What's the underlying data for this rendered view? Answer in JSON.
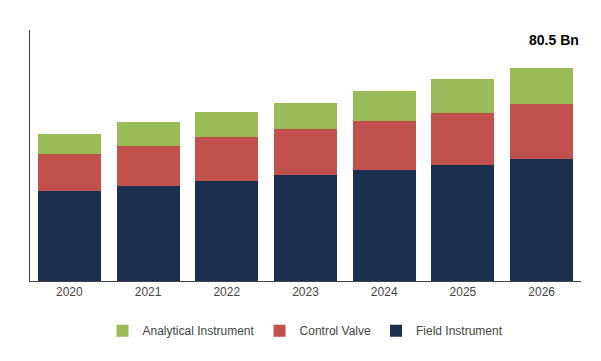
{
  "chart_data": {
    "type": "bar",
    "stacked": true,
    "categories": [
      "2020",
      "2021",
      "2022",
      "2023",
      "2024",
      "2025",
      "2026"
    ],
    "series": [
      {
        "name": "Field Instrument",
        "color": "#1b2f4e",
        "values": [
          34.0,
          36.0,
          38.0,
          40.0,
          42.0,
          44.0,
          46.0
        ]
      },
      {
        "name": "Control Valve",
        "color": "#c0514d",
        "values": [
          14.0,
          15.0,
          16.5,
          17.5,
          18.5,
          19.5,
          21.0
        ]
      },
      {
        "name": "Analytical Instrument",
        "color": "#9bbb59",
        "values": [
          7.5,
          9.0,
          9.5,
          10.0,
          11.5,
          13.0,
          13.5
        ]
      }
    ],
    "annotation": "80.5 Bn",
    "ylim": [
      0,
      95
    ],
    "yticks": [],
    "grid": false,
    "legend": "bottom",
    "tick_labels": "x"
  }
}
